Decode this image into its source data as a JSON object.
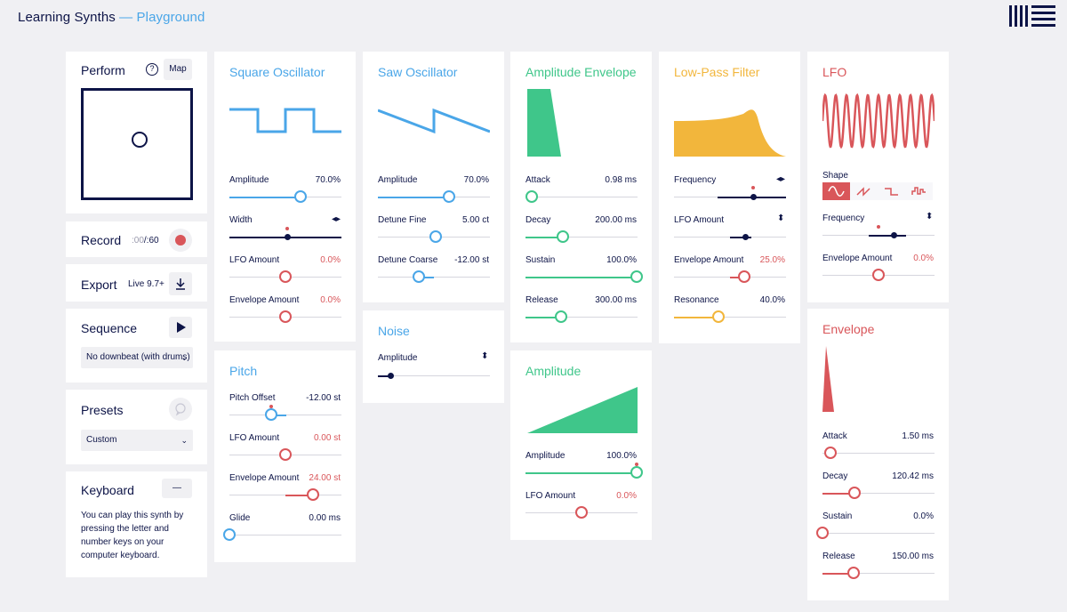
{
  "header": {
    "app": "Learning Synths",
    "sep": " — ",
    "page": "Playground"
  },
  "left": {
    "perform": {
      "title": "Perform",
      "help": "?",
      "map": "Map"
    },
    "record": {
      "title": "Record",
      "time_a": ":00",
      "time_b": "/:60"
    },
    "export": {
      "title": "Export",
      "version": "Live 9.7+"
    },
    "sequence": {
      "title": "Sequence",
      "select": "No downbeat (with drums)"
    },
    "presets": {
      "title": "Presets",
      "select": "Custom"
    },
    "keyboard": {
      "title": "Keyboard",
      "toggle": "—",
      "text": "You can play this synth by pressing the letter and number keys on your computer keyboard."
    }
  },
  "square": {
    "title": "Square Oscillator",
    "params": [
      {
        "label": "Amplitude",
        "value": "70.0%"
      },
      {
        "label": "Width",
        "value": ""
      },
      {
        "label": "LFO Amount",
        "value": "0.0%"
      },
      {
        "label": "Envelope Amount",
        "value": "0.0%"
      }
    ]
  },
  "pitch": {
    "title": "Pitch",
    "params": [
      {
        "label": "Pitch Offset",
        "value": "-12.00 st"
      },
      {
        "label": "LFO Amount",
        "value": "0.00 st"
      },
      {
        "label": "Envelope Amount",
        "value": "24.00 st"
      },
      {
        "label": "Glide",
        "value": "0.00 ms"
      }
    ]
  },
  "saw": {
    "title": "Saw Oscillator",
    "params": [
      {
        "label": "Amplitude",
        "value": "70.0%"
      },
      {
        "label": "Detune Fine",
        "value": "5.00 ct"
      },
      {
        "label": "Detune Coarse",
        "value": "-12.00 st"
      }
    ]
  },
  "noise": {
    "title": "Noise",
    "params": [
      {
        "label": "Amplitude",
        "value": ""
      }
    ]
  },
  "ampenv": {
    "title": "Amplitude Envelope",
    "params": [
      {
        "label": "Attack",
        "value": "0.98 ms"
      },
      {
        "label": "Decay",
        "value": "200.00 ms"
      },
      {
        "label": "Sustain",
        "value": "100.0%"
      },
      {
        "label": "Release",
        "value": "300.00 ms"
      }
    ]
  },
  "amplitude": {
    "title": "Amplitude",
    "params": [
      {
        "label": "Amplitude",
        "value": "100.0%"
      },
      {
        "label": "LFO Amount",
        "value": "0.0%"
      }
    ]
  },
  "filter": {
    "title": "Low-Pass Filter",
    "params": [
      {
        "label": "Frequency",
        "value": ""
      },
      {
        "label": "LFO Amount",
        "value": ""
      },
      {
        "label": "Envelope Amount",
        "value": "25.0%"
      },
      {
        "label": "Resonance",
        "value": "40.0%"
      }
    ]
  },
  "lfo": {
    "title": "LFO",
    "shape_label": "Shape",
    "params": [
      {
        "label": "Frequency",
        "value": ""
      },
      {
        "label": "Envelope Amount",
        "value": "0.0%"
      }
    ]
  },
  "envelope": {
    "title": "Envelope",
    "params": [
      {
        "label": "Attack",
        "value": "1.50 ms"
      },
      {
        "label": "Decay",
        "value": "120.42 ms"
      },
      {
        "label": "Sustain",
        "value": "0.0%"
      },
      {
        "label": "Release",
        "value": "150.00 ms"
      }
    ]
  },
  "colors": {
    "dark": "#0d1447",
    "blue": "#4aa6e8",
    "green": "#3fc68a",
    "yellow": "#f2b63c",
    "red": "#d9565a",
    "bg": "#f0f0f3"
  }
}
